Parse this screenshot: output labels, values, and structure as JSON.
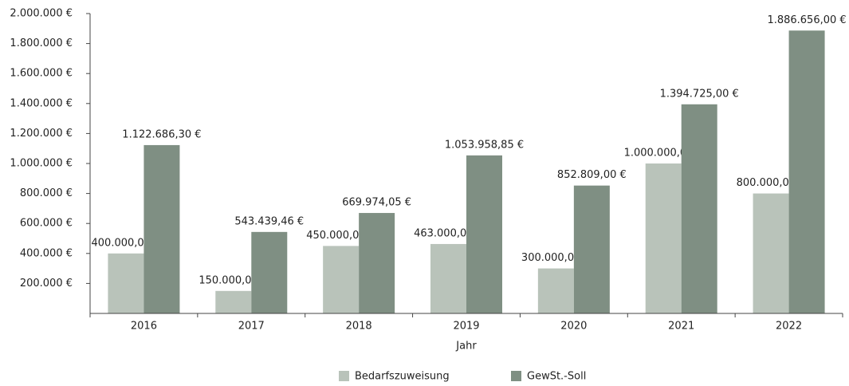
{
  "chart_data": {
    "type": "bar",
    "x_label": "Jahr",
    "categories": [
      "2016",
      "2017",
      "2018",
      "2019",
      "2020",
      "2021",
      "2022"
    ],
    "series": [
      {
        "name": "Bedarfszuweisung",
        "color": "#b9c3ba",
        "values": [
          400000,
          150000,
          450000,
          463000,
          300000,
          1000000,
          800000
        ],
        "value_labels": [
          "400.000,00 €",
          "150.000,00 €",
          "450.000,00 €",
          "463.000,00 €",
          "300.000,00 €",
          "1.000.000,00 €",
          "800.000,00 €"
        ]
      },
      {
        "name": "GewSt.-Soll",
        "color": "#7f8f83",
        "values": [
          1122686.3,
          543439.46,
          669974.05,
          1053958.85,
          852809.0,
          1394725.0,
          1886656.0
        ],
        "value_labels": [
          "1.122.686,30 €",
          "543.439,46 €",
          "669.974,05 €",
          "1.053.958,85 €",
          "852.809,00 €",
          "1.394.725,00 €",
          "1.886.656,00 €"
        ]
      }
    ],
    "ylim": [
      0,
      2000000
    ],
    "yticks": [
      {
        "value": 200000,
        "label": "200.000 €"
      },
      {
        "value": 400000,
        "label": "400.000 €"
      },
      {
        "value": 600000,
        "label": "600.000 €"
      },
      {
        "value": 800000,
        "label": "800.000 €"
      },
      {
        "value": 1000000,
        "label": "1.000.000 €"
      },
      {
        "value": 1200000,
        "label": "1.200.000 €"
      },
      {
        "value": 1400000,
        "label": "1.400.000 €"
      },
      {
        "value": 1600000,
        "label": "1.600.000 €"
      },
      {
        "value": 1800000,
        "label": "1.800.000 €"
      },
      {
        "value": 2000000,
        "label": "2.000.000 €"
      }
    ],
    "legend": "bottom"
  }
}
